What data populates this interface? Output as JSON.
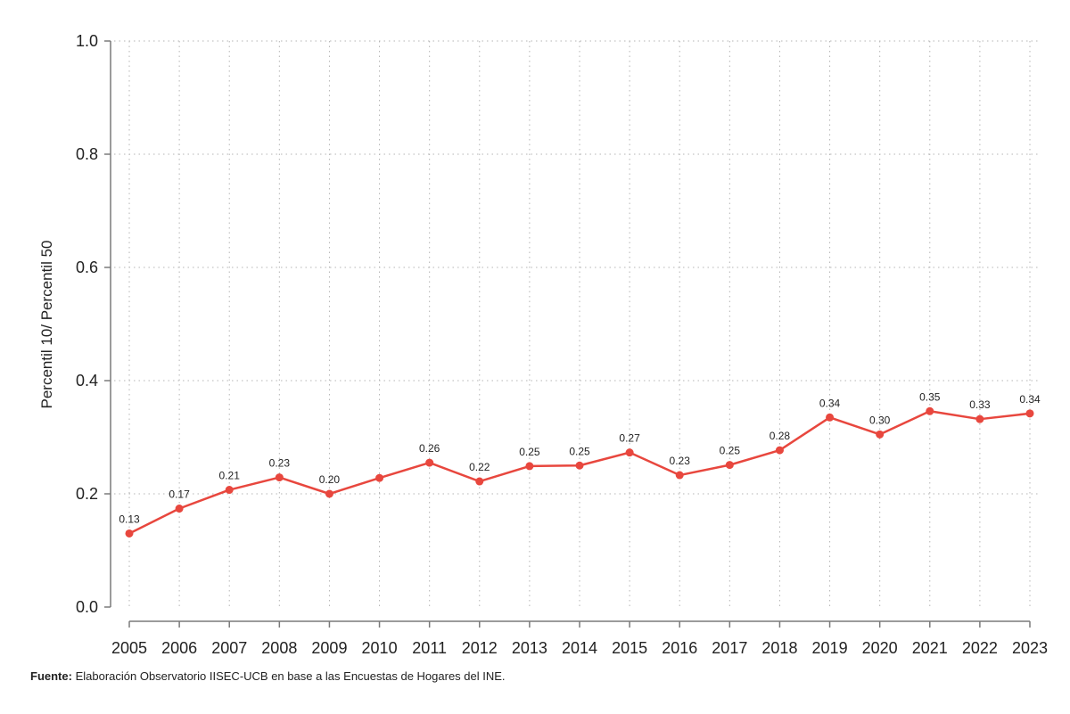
{
  "chart_data": {
    "type": "line",
    "title": "",
    "xlabel": "",
    "ylabel": "Percentil 10/ Percentil 50",
    "ylim": [
      0,
      1
    ],
    "yticks": [
      "0.0",
      "0.2",
      "0.4",
      "0.6",
      "0.8",
      "1.0"
    ],
    "grid": true,
    "categories": [
      "2005",
      "2006",
      "2007",
      "2008",
      "2009",
      "2010",
      "2011",
      "2012",
      "2013",
      "2014",
      "2015",
      "2016",
      "2017",
      "2018",
      "2019",
      "2020",
      "2021",
      "2022",
      "2023"
    ],
    "series": [
      {
        "color": "#e8473e",
        "values": [
          0.13,
          0.174,
          0.207,
          0.229,
          0.2,
          0.228,
          0.255,
          0.222,
          0.249,
          0.25,
          0.273,
          0.233,
          0.251,
          0.277,
          0.335,
          0.305,
          0.346,
          0.332,
          0.342
        ],
        "labels": [
          "0.13",
          "0.17",
          "0.21",
          "0.23",
          "0.20",
          null,
          "0.26",
          "0.22",
          "0.25",
          "0.25",
          "0.27",
          "0.23",
          "0.25",
          "0.28",
          "0.34",
          "0.30",
          "0.35",
          "0.33",
          "0.34"
        ]
      }
    ]
  },
  "source": {
    "prefix": "Fuente:",
    "text": " Elaboración Observatorio IISEC-UCB en base a las Encuestas de Hogares del INE."
  }
}
